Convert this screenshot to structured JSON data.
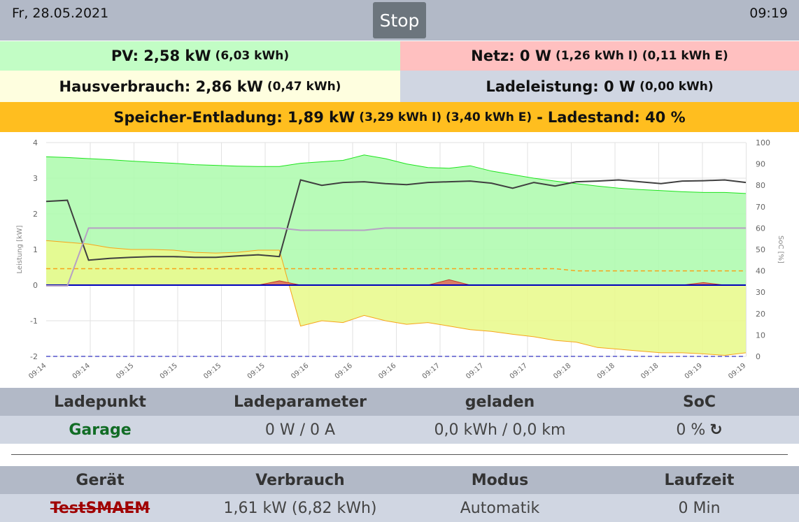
{
  "header": {
    "date": "Fr, 28.05.2021",
    "stop_label": "Stop",
    "time": "09:19"
  },
  "status": {
    "pv": {
      "label": "PV: 2,58 kW",
      "sub": "(6,03 kWh)",
      "color": "#c2fdc5"
    },
    "netz": {
      "label": "Netz: 0 W",
      "sub": "(1,26 kWh I) (0,11 kWh E)",
      "color": "#ffc0c0"
    },
    "haus": {
      "label": "Hausverbrauch: 2,86 kW",
      "sub": "(0,47 kWh)",
      "color": "#fefedf"
    },
    "lade": {
      "label": "Ladeleistung: 0 W",
      "sub": "(0,00 kWh)",
      "color": "#d0d6e2"
    },
    "speicher": {
      "label": "Speicher-Entladung: 1,89 kW",
      "sub": "(3,29 kWh I) (3,40 kWh E)",
      "separator": "-",
      "soc_label": "Ladestand: 40 %",
      "color": "#ffbe1f"
    }
  },
  "chart_data": {
    "type": "area",
    "x_tick_labels": [
      "09:14",
      "09:14",
      "09:15",
      "09:15",
      "09:15",
      "09:15",
      "09:16",
      "09:16",
      "09:16",
      "09:17",
      "09:17",
      "09:17",
      "09:18",
      "09:18",
      "09:18",
      "09:19",
      "09:19"
    ],
    "ylabel": "Leistung [kW]",
    "y2label": "SoC [%]",
    "ylim": [
      -2,
      4
    ],
    "y2lim": [
      0,
      100
    ],
    "y_ticks": [
      -2,
      -1,
      0,
      1,
      2,
      3,
      4
    ],
    "y2_ticks": [
      0,
      10,
      20,
      30,
      40,
      50,
      60,
      70,
      80,
      90,
      100
    ],
    "grid": true,
    "x": [
      0,
      0.5,
      1,
      1.5,
      2,
      2.5,
      3,
      3.5,
      4,
      4.5,
      5,
      5.5,
      6,
      6.5,
      7,
      7.5,
      8,
      8.5,
      9,
      9.5,
      10,
      10.5,
      11,
      11.5,
      12,
      12.5,
      13,
      13.5,
      14,
      14.5,
      15,
      15.5,
      16,
      16.5
    ],
    "series": [
      {
        "color": "#1de41d",
        "fill": "#b0fbb0",
        "axis": "y",
        "values": [
          3.6,
          3.58,
          3.55,
          3.52,
          3.48,
          3.45,
          3.42,
          3.38,
          3.36,
          3.34,
          3.33,
          3.33,
          3.42,
          3.46,
          3.5,
          3.65,
          3.55,
          3.4,
          3.3,
          3.28,
          3.35,
          3.2,
          3.1,
          3.0,
          2.92,
          2.85,
          2.78,
          2.72,
          2.68,
          2.65,
          2.62,
          2.6,
          2.6,
          2.57
        ]
      },
      {
        "color": "#f7a41a",
        "fill": "#e9f98f",
        "axis": "y",
        "values": [
          1.25,
          1.2,
          1.15,
          1.05,
          1.0,
          1.0,
          0.98,
          0.92,
          0.9,
          0.92,
          0.98,
          0.98,
          -1.15,
          -1.0,
          -1.05,
          -0.85,
          -1.0,
          -1.1,
          -1.05,
          -1.15,
          -1.25,
          -1.3,
          -1.38,
          -1.45,
          -1.55,
          -1.6,
          -1.75,
          -1.8,
          -1.85,
          -1.9,
          -1.9,
          -1.93,
          -1.97,
          -1.9
        ]
      },
      {
        "color": "#c23a2a",
        "fill": "#dd6d5c",
        "axis": "y",
        "values": [
          0,
          0,
          0,
          0,
          0,
          0,
          0,
          0,
          0,
          0,
          0,
          0.12,
          0,
          0,
          0,
          0,
          0,
          0,
          0,
          0.15,
          0,
          0,
          0,
          0,
          0,
          0,
          0,
          0,
          0,
          0,
          0,
          0.07,
          0,
          0
        ]
      },
      {
        "color": "#3f3f3f",
        "axis": "y",
        "values": [
          2.35,
          2.38,
          0.7,
          0.75,
          0.78,
          0.8,
          0.8,
          0.78,
          0.78,
          0.82,
          0.85,
          0.8,
          2.95,
          2.8,
          2.88,
          2.9,
          2.85,
          2.82,
          2.88,
          2.9,
          2.92,
          2.86,
          2.72,
          2.88,
          2.78,
          2.9,
          2.92,
          2.95,
          2.9,
          2.85,
          2.92,
          2.93,
          2.95,
          2.88
        ]
      },
      {
        "color": "#0000bb",
        "axis": "y",
        "values": [
          0,
          0,
          0,
          0,
          0,
          0,
          0,
          0,
          0,
          0,
          0,
          0,
          0,
          0,
          0,
          0,
          0,
          0,
          0,
          0,
          0,
          0,
          0,
          0,
          0,
          0,
          0,
          0,
          0,
          0,
          0,
          0,
          0,
          0
        ]
      },
      {
        "color": "#b6a0c4",
        "axis": "y2",
        "values": [
          33,
          33,
          60,
          60,
          60,
          60,
          60,
          60,
          60,
          60,
          60,
          60,
          59,
          59,
          59,
          59,
          60,
          60,
          60,
          60,
          60,
          60,
          60,
          60,
          60,
          60,
          60,
          60,
          60,
          60,
          60,
          60,
          60,
          60
        ]
      },
      {
        "color": "#f7a41a",
        "dashed": true,
        "axis": "y2",
        "values": [
          41,
          41,
          41,
          41,
          41,
          41,
          41,
          41,
          41,
          41,
          41,
          41,
          41,
          41,
          41,
          41,
          41,
          41,
          41,
          41,
          41,
          41,
          41,
          41,
          41,
          40,
          40,
          40,
          40,
          40,
          40,
          40,
          40,
          40
        ]
      },
      {
        "color": "#5555cc",
        "dashed": true,
        "axis": "y2",
        "values": [
          0,
          0,
          0,
          0,
          0,
          0,
          0,
          0,
          0,
          0,
          0,
          0,
          0,
          0,
          0,
          0,
          0,
          0,
          0,
          0,
          0,
          0,
          0,
          0,
          0,
          0,
          0,
          0,
          0,
          0,
          0,
          0,
          0,
          0
        ]
      }
    ]
  },
  "ladepunkt_table": {
    "headers": [
      "Ladepunkt",
      "Ladeparameter",
      "geladen",
      "SoC"
    ],
    "row": {
      "name": "Garage",
      "params": "0 W / 0 A",
      "charged": "0,0 kWh / 0,0 km",
      "soc": "0 %",
      "reload_icon": "↻"
    }
  },
  "device_table": {
    "headers": [
      "Gerät",
      "Verbrauch",
      "Modus",
      "Laufzeit"
    ],
    "row": {
      "name": "TestSMAEM",
      "consumption": "1,61 kW (6,82 kWh)",
      "mode": "Automatik",
      "runtime": "0 Min"
    }
  }
}
